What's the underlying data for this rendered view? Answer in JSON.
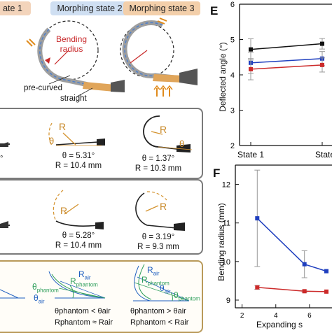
{
  "tabs": {
    "state1": "ate 1",
    "state2": "Morphing state 2",
    "state3": "Morphing state 3"
  },
  "diagram": {
    "bending_radius": "Bending\nradius",
    "precurved": "pre-curved",
    "straight": "straight"
  },
  "row1": {
    "left_partial": "°",
    "s2": {
      "R": "R",
      "theta": "θ",
      "angle": "θ = 5.31°",
      "radius": "R = 10.4 mm"
    },
    "s3": {
      "R": "R",
      "theta": "θ",
      "angle": "θ = 1.37°",
      "radius": "R = 10.3 mm"
    }
  },
  "row2": {
    "s2": {
      "R": "R",
      "theta": "θ",
      "angle": "θ = 5.28°",
      "radius": "R = 10.4 mm"
    },
    "s3": {
      "R": "R",
      "theta": "θ",
      "angle": "θ = 3.19°",
      "radius": "R = 9.3 mm"
    }
  },
  "bottom": {
    "s2": {
      "R_air": "R",
      "air": "air",
      "R_phantom": "R",
      "phantom": "phantom",
      "theta_phantom": "θ",
      "theta_air": "θ",
      "ineq1": "θphantom < θair",
      "ineq2": "Rphantom ≈ Rair"
    },
    "s3": {
      "R_air": "R",
      "air": "air",
      "R_phantom": "R",
      "phantom": "phantom",
      "theta_air": "θ",
      "theta_phantom": "θ",
      "ineq1": "θphantom > θair",
      "ineq2": "Rphantom < Rair"
    }
  },
  "panelE": {
    "letter": "E",
    "ylabel": "Deflected angle (°)",
    "yticks": [
      "2",
      "3",
      "4",
      "5",
      "6"
    ],
    "xticks": [
      "State 1",
      "State"
    ]
  },
  "panelF": {
    "letter": "F",
    "ylabel": "Bending radius (mm)",
    "yticks": [
      "9",
      "10",
      "11",
      "12"
    ],
    "xticks": [
      "2",
      "4",
      "6",
      "8"
    ],
    "xlabel": "Expanding s"
  },
  "colors": {
    "black": "#111111",
    "blue": "#1f3fbf",
    "red": "#cc2a2a",
    "grey": "#7a7a7a",
    "orange": "#d4821f",
    "green": "#2e9e5a"
  },
  "chart_data": [
    {
      "type": "line",
      "ylabel": "Deflected angle (°)",
      "ylim": [
        2,
        6
      ],
      "categories": [
        "State 1",
        "State"
      ],
      "series": [
        {
          "values": [
            4.72,
            4.88
          ],
          "err": [
            0.3,
            0.15
          ]
        },
        {
          "values": [
            4.34,
            4.46
          ],
          "err": [
            0.3,
            0.2
          ]
        },
        {
          "values": [
            4.16,
            4.28
          ],
          "err": [
            0.3,
            0.2
          ]
        }
      ]
    },
    {
      "type": "line",
      "ylabel": "Bending radius (mm)",
      "xlabel": "Expanding s",
      "ylim": [
        8.8,
        12.5
      ],
      "xlim": [
        2,
        7
      ],
      "series": [
        {
          "x": [
            2.9,
            5.7,
            7.0
          ],
          "y": [
            11.12,
            9.93,
            9.75
          ],
          "err": [
            1.25,
            0.35,
            0
          ]
        },
        {
          "x": [
            2.9,
            5.7,
            7.0
          ],
          "y": [
            9.33,
            9.23,
            9.22
          ],
          "err": [
            0.05,
            0.03,
            0
          ]
        }
      ]
    }
  ]
}
